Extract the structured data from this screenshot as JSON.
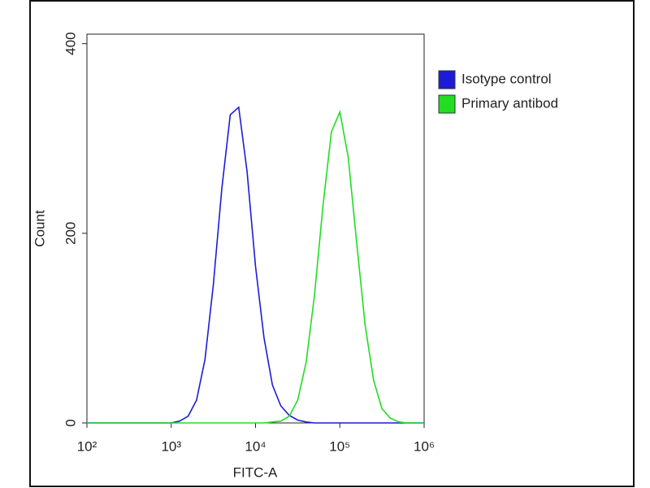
{
  "chart_data": {
    "type": "line",
    "x_scale": "log",
    "x_label": "FITC-A",
    "y_label": "Count",
    "x": [
      100,
      126,
      158,
      200,
      251,
      316,
      398,
      501,
      631,
      794,
      1000,
      1259,
      1585,
      1995,
      2512,
      3162,
      3981,
      5012,
      6310,
      7943,
      10000,
      12589,
      15849,
      19953,
      25119,
      31623,
      39811,
      50119,
      63096,
      79433,
      100000,
      125893,
      158489,
      199526,
      251189,
      316228,
      398107,
      501187,
      630957,
      794328,
      1000000
    ],
    "series": [
      {
        "name": "Isotype control",
        "color": "#1c1cd8",
        "values": [
          0,
          0,
          0,
          0,
          0,
          0,
          0,
          0,
          0,
          0,
          0,
          2,
          7,
          24,
          67,
          146,
          247,
          325,
          333,
          265,
          165,
          90,
          40,
          18,
          8,
          3,
          1,
          0,
          0,
          0,
          0,
          0,
          0,
          0,
          0,
          0,
          0,
          0,
          0,
          0,
          0
        ]
      },
      {
        "name": "Primary antibod",
        "color": "#22dd22",
        "values": [
          0,
          0,
          0,
          0,
          0,
          0,
          0,
          0,
          0,
          0,
          0,
          0,
          0,
          0,
          0,
          0,
          0,
          0,
          0,
          0,
          0,
          0,
          1,
          2,
          7,
          24,
          64,
          135,
          229,
          307,
          328,
          280,
          190,
          103,
          45,
          15,
          5,
          1,
          0,
          0,
          0
        ]
      }
    ],
    "xlim": [
      100,
      1000000
    ],
    "xticks": [
      {
        "value": 100,
        "label": "10²"
      },
      {
        "value": 1000,
        "label": "10³"
      },
      {
        "value": 10000,
        "label": "10⁴"
      },
      {
        "value": 100000,
        "label": "10⁵"
      },
      {
        "value": 1000000,
        "label": "10⁶"
      }
    ],
    "ylim": [
      0,
      410
    ],
    "yticks": [
      0,
      200,
      400
    ],
    "legend": "right"
  }
}
